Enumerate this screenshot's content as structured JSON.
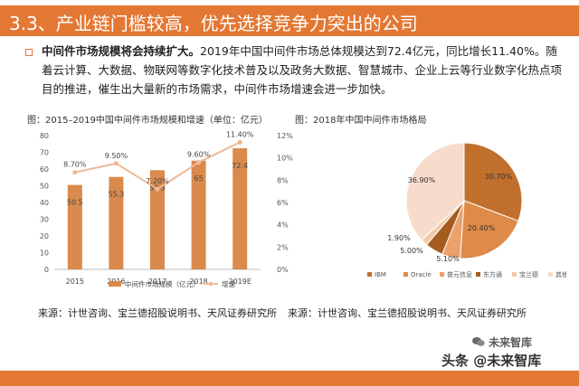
{
  "header": {
    "title": "3.3、产业链门槛较高，优先选择竞争力突出的公司"
  },
  "body": {
    "lead_bold": "中间件市场规模将会持续扩大。",
    "lead_rest": "2019年中国中间件市场总体规模达到72.4亿元，同比增长11.40%。随着云计算、大数据、物联网等数字化技术普及以及政务大数据、智慧城市、企业上云等行业数字化热点项目的推进，催生出大量新的市场需求，中间件市场增速会进一步加快。"
  },
  "left_chart": {
    "caption": "图：2015–2019中国中间件市场规模和增速（单位：亿元）",
    "source": "来源：计世咨询、宝兰德招股说明书、天风证券研究所"
  },
  "right_chart": {
    "caption": "图：2018年中国中间件市场格局",
    "source": "来源：计世咨询、宝兰德招股说明书、天风证券研究所"
  },
  "watermark": {
    "line1": "未来智库",
    "line2": "头条 @未来智库"
  },
  "colors": {
    "accent": "#e37834",
    "bar": "#d98a4c",
    "line": "#f0b896",
    "pie": [
      "#c0702c",
      "#de8a48",
      "#eca06a",
      "#a55c1f",
      "#f4c7a6",
      "#f8dccb"
    ]
  },
  "chart_data": [
    {
      "type": "bar",
      "categories": [
        "2015",
        "2016",
        "2017",
        "2018",
        "2019E"
      ],
      "series": [
        {
          "name": "中间件市场规模（亿元）",
          "type": "bar",
          "values": [
            50.5,
            55.3,
            59.3,
            65,
            72.4
          ]
        },
        {
          "name": "增速",
          "type": "line",
          "values": [
            8.7,
            9.5,
            7.2,
            9.6,
            11.4
          ],
          "labels": [
            "8.70%",
            "9.50%",
            "7.20%",
            "9.60%",
            "11.40%"
          ]
        }
      ],
      "ylim": [
        0,
        80
      ],
      "yticks": [
        "0",
        "10",
        "20",
        "30",
        "40",
        "50",
        "60",
        "70",
        "80"
      ],
      "y2lim": [
        0,
        12
      ],
      "y2ticks": [
        "0%",
        "2%",
        "4%",
        "6%",
        "8%",
        "10%",
        "12%"
      ],
      "legend": "bottom"
    },
    {
      "type": "pie",
      "categories": [
        "IBM",
        "Oracle",
        "普元信息",
        "东方通",
        "宝兰德",
        "其他"
      ],
      "values": [
        30.7,
        20.4,
        5.1,
        5.0,
        1.9,
        36.9
      ],
      "labels": [
        "30.70%",
        "20.40%",
        "5.10%",
        "5.00%",
        "1.90%",
        "36.90%"
      ],
      "legend": "bottom"
    }
  ]
}
